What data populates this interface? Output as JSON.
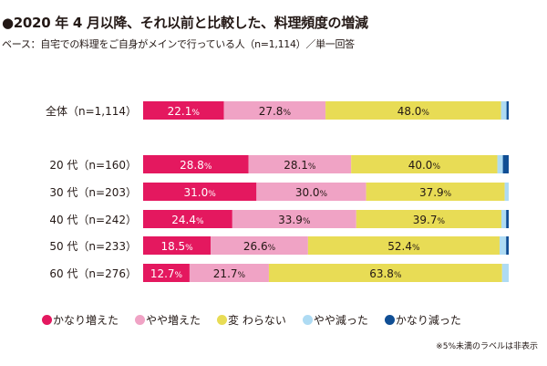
{
  "title": "●2020 年 4 月以降、それ以前と比較した、料理頻度の増減",
  "subtitle": "ベース：自宅での料理をご自身がメインで行っている人（n=1,114）／単一回答",
  "note": "※5%未満のラベルは非表示",
  "chart_data": {
    "type": "bar",
    "orientation": "horizontal-stacked-100",
    "title": "●2020 年 4 月以降、それ以前と比較した、料理頻度の増減",
    "xlabel": "",
    "ylabel": "",
    "xlim": [
      0,
      100
    ],
    "grid": false,
    "legend_position": "bottom",
    "label_threshold": 5,
    "categories": [
      "全体（n=1,114）",
      "20 代（n=160）",
      "30 代（n=203）",
      "40 代（n=242）",
      "50 代（n=233）",
      "60 代（n=276）"
    ],
    "group_gap_after": [
      0
    ],
    "series": [
      {
        "name": "かなり増えた",
        "color": "#e4185f",
        "label_color": "#ffffff",
        "values": [
          22.1,
          28.8,
          31.0,
          24.4,
          18.5,
          12.7
        ]
      },
      {
        "name": "やや増えた",
        "color": "#f0a3c5",
        "label_color": "#231815",
        "values": [
          27.8,
          28.1,
          30.0,
          33.9,
          26.6,
          21.7
        ]
      },
      {
        "name": "変 わらない",
        "color": "#e8dc55",
        "label_color": "#231815",
        "values": [
          48.0,
          40.0,
          37.9,
          39.7,
          52.4,
          63.8
        ]
      },
      {
        "name": "やや減った",
        "color": "#aedbf3",
        "label_color": "#231815",
        "values": [
          1.5,
          1.5,
          1.1,
          1.3,
          1.8,
          1.8
        ]
      },
      {
        "name": "かなり減った",
        "color": "#104e94",
        "label_color": "#ffffff",
        "values": [
          0.6,
          1.6,
          0.0,
          0.7,
          0.7,
          0.0
        ]
      }
    ]
  }
}
